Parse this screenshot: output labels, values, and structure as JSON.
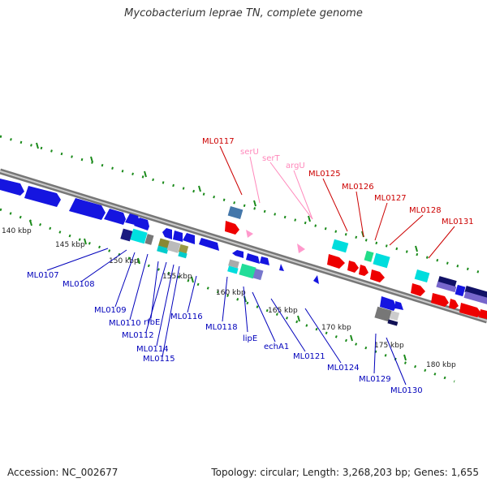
{
  "title": "Mycobacterium leprae TN, complete genome",
  "footer": {
    "accession": "Accession: NC_002677",
    "summary": "Topology: circular; Length: 3,268,203 bp; Genes: 1,655"
  },
  "colors": {
    "backbone_outer": "#777777",
    "backbone_inner": "#ffffff",
    "tick": "#1a8a1a",
    "forward_gene": "#ee0000",
    "reverse_gene": "#1515e0",
    "trna_label": "#ff88bb",
    "forward_label": "#cc0000",
    "reverse_label": "#0000bb"
  },
  "scale_labels": [
    "140 kbp",
    "145 kbp",
    "150 kbp",
    "155 kbp",
    "160 kbp",
    "165 kbp",
    "170 kbp",
    "175 kbp",
    "180 kbp"
  ],
  "forward_labels": [
    "ML0117",
    "ML0125",
    "ML0126",
    "ML0127",
    "ML0128",
    "ML0131"
  ],
  "trna_labels": [
    "serU",
    "serT",
    "argU"
  ],
  "reverse_labels": [
    "ML0107",
    "ML0108",
    "ML0109",
    "ML0110",
    "rfbE",
    "ML0112",
    "ML0114",
    "ML0115",
    "ML0116",
    "ML0118",
    "lipE",
    "echA1",
    "ML0121",
    "ML0124",
    "ML0129",
    "ML0130"
  ]
}
